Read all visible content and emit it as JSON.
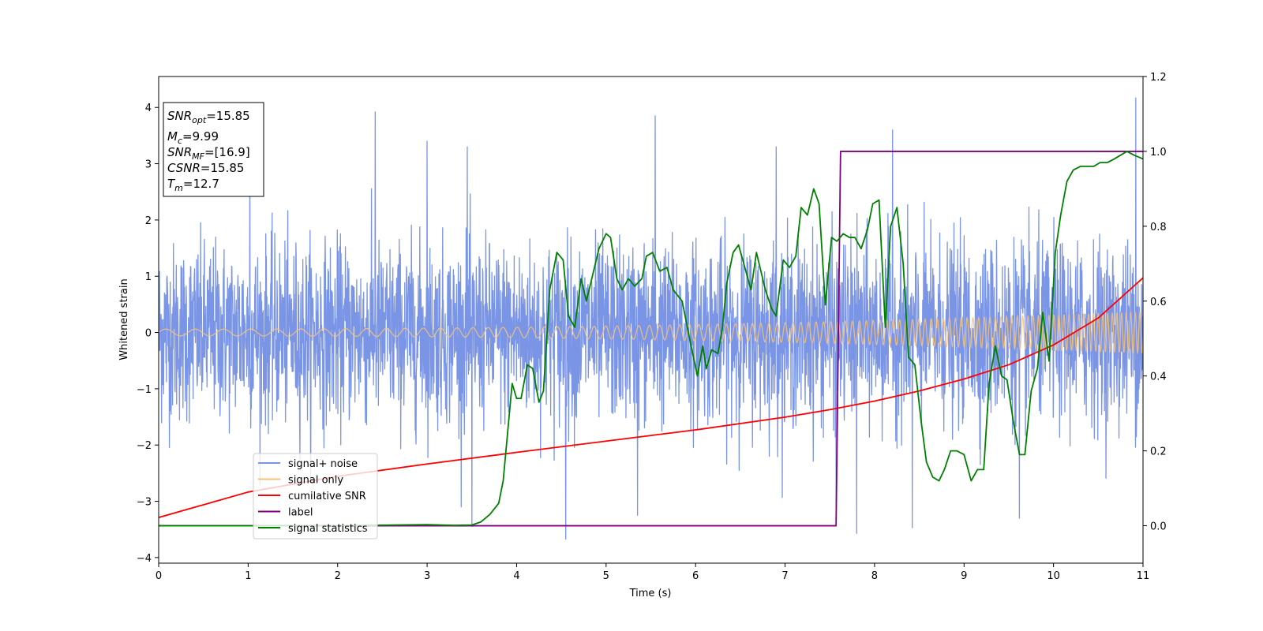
{
  "chart_data": {
    "type": "line",
    "title": "",
    "xlabel": "Time (s)",
    "ylabel": "Whitened strain",
    "xlim": [
      0,
      11
    ],
    "ylim": [
      -4.1,
      4.55
    ],
    "y2lim": [
      -0.1,
      1.2
    ],
    "x_ticks": [
      "0",
      "1",
      "2",
      "3",
      "4",
      "5",
      "6",
      "7",
      "8",
      "9",
      "10",
      "11"
    ],
    "y_ticks": [
      "−4",
      "−3",
      "−2",
      "−1",
      "0",
      "1",
      "2",
      "3",
      "4"
    ],
    "y2_ticks": [
      "0.0",
      "0.2",
      "0.4",
      "0.6",
      "0.8",
      "1.0",
      "1.2"
    ],
    "grid": false,
    "legend_position": "lower-left",
    "info_box": {
      "lines": [
        {
          "label": "SNR",
          "sub": "opt",
          "value": "=15.85"
        },
        {
          "label": "M",
          "sub": "c",
          "value": "=9.99"
        },
        {
          "label": "SNR",
          "sub": "MF",
          "value": "=[16.9]"
        },
        {
          "label": "CSNR",
          "sub": "",
          "value": "=15.85"
        },
        {
          "label": "T",
          "sub": "m",
          "value": "=12.7"
        }
      ]
    },
    "series": [
      {
        "name": "signal+ noise",
        "color": "#7b95e6",
        "axis": "left",
        "kind": "noise",
        "std": 0.78,
        "spikes": [
          [
            2.42,
            3.92
          ],
          [
            5.55,
            3.85
          ],
          [
            8.2,
            3.6
          ],
          [
            10.92,
            4.17
          ],
          [
            4.55,
            -3.67
          ],
          [
            7.8,
            -3.57
          ],
          [
            7.57,
            -3.27
          ],
          [
            3.5,
            -3.45
          ],
          [
            8.42,
            -3.47
          ],
          [
            5.35,
            -3.25
          ],
          [
            3.0,
            3.4
          ],
          [
            9.62,
            -3.3
          ],
          [
            1.02,
            3.3
          ],
          [
            3.45,
            3.3
          ],
          [
            6.9,
            3.3
          ]
        ]
      },
      {
        "name": "signal only",
        "color": "#f5c27a",
        "axis": "left",
        "kind": "chirp",
        "amplitude_start": 0.06,
        "amplitude_end": 0.37,
        "freq_start": 3.0,
        "freq_end": 20.0
      },
      {
        "name": "cumilative SNR",
        "color": "#ff0000",
        "axis": "right",
        "x": [
          0,
          1,
          2,
          3,
          4,
          5,
          6,
          7,
          7.5,
          8,
          8.5,
          9,
          9.5,
          10,
          10.5,
          11
        ],
        "y": [
          0.022,
          0.09,
          0.132,
          0.165,
          0.196,
          0.226,
          0.256,
          0.29,
          0.31,
          0.333,
          0.36,
          0.392,
          0.43,
          0.483,
          0.555,
          0.662
        ]
      },
      {
        "name": "label",
        "color": "#800080",
        "axis": "right",
        "x": [
          0,
          7.57,
          7.62,
          11
        ],
        "y": [
          0.0,
          0.0,
          1.0,
          1.0
        ]
      },
      {
        "name": "signal statistics",
        "color": "#008000",
        "axis": "right",
        "x": [
          0,
          1,
          2,
          3,
          3.3,
          3.5,
          3.6,
          3.7,
          3.8,
          3.85,
          3.95,
          4.0,
          4.05,
          4.12,
          4.18,
          4.25,
          4.3,
          4.37,
          4.45,
          4.52,
          4.58,
          4.65,
          4.72,
          4.78,
          4.85,
          4.92,
          5.0,
          5.05,
          5.12,
          5.18,
          5.25,
          5.32,
          5.4,
          5.45,
          5.52,
          5.6,
          5.68,
          5.75,
          5.85,
          5.95,
          6.02,
          6.08,
          6.12,
          6.18,
          6.25,
          6.3,
          6.35,
          6.42,
          6.48,
          6.55,
          6.62,
          6.68,
          6.72,
          6.78,
          6.85,
          6.9,
          6.98,
          7.05,
          7.12,
          7.18,
          7.25,
          7.32,
          7.38,
          7.45,
          7.52,
          7.58,
          7.65,
          7.72,
          7.78,
          7.85,
          7.92,
          7.98,
          8.05,
          8.12,
          8.18,
          8.25,
          8.32,
          8.38,
          8.45,
          8.52,
          8.58,
          8.65,
          8.72,
          8.78,
          8.85,
          8.92,
          9.0,
          9.08,
          9.15,
          9.22,
          9.28,
          9.35,
          9.42,
          9.48,
          9.55,
          9.62,
          9.68,
          9.75,
          9.82,
          9.88,
          9.95,
          10.02,
          10.08,
          10.15,
          10.22,
          10.3,
          10.38,
          10.45,
          10.52,
          10.6,
          10.68,
          10.75,
          10.82,
          10.9,
          11.0
        ],
        "y": [
          0.0,
          0.0,
          0.0,
          0.003,
          0.001,
          0.002,
          0.01,
          0.03,
          0.06,
          0.12,
          0.38,
          0.34,
          0.34,
          0.43,
          0.42,
          0.33,
          0.36,
          0.63,
          0.73,
          0.71,
          0.56,
          0.53,
          0.66,
          0.6,
          0.67,
          0.74,
          0.78,
          0.77,
          0.66,
          0.63,
          0.66,
          0.64,
          0.66,
          0.72,
          0.73,
          0.68,
          0.69,
          0.63,
          0.6,
          0.48,
          0.4,
          0.48,
          0.42,
          0.47,
          0.46,
          0.53,
          0.65,
          0.73,
          0.75,
          0.69,
          0.63,
          0.73,
          0.69,
          0.63,
          0.58,
          0.56,
          0.71,
          0.69,
          0.72,
          0.85,
          0.83,
          0.9,
          0.86,
          0.59,
          0.77,
          0.76,
          0.78,
          0.77,
          0.77,
          0.74,
          0.79,
          0.86,
          0.87,
          0.53,
          0.8,
          0.85,
          0.7,
          0.45,
          0.43,
          0.28,
          0.17,
          0.13,
          0.12,
          0.15,
          0.2,
          0.2,
          0.19,
          0.12,
          0.15,
          0.15,
          0.38,
          0.48,
          0.4,
          0.39,
          0.28,
          0.19,
          0.19,
          0.36,
          0.42,
          0.57,
          0.44,
          0.73,
          0.83,
          0.92,
          0.95,
          0.96,
          0.96,
          0.96,
          0.97,
          0.97,
          0.98,
          0.99,
          1.0,
          0.99,
          0.98
        ]
      }
    ]
  }
}
